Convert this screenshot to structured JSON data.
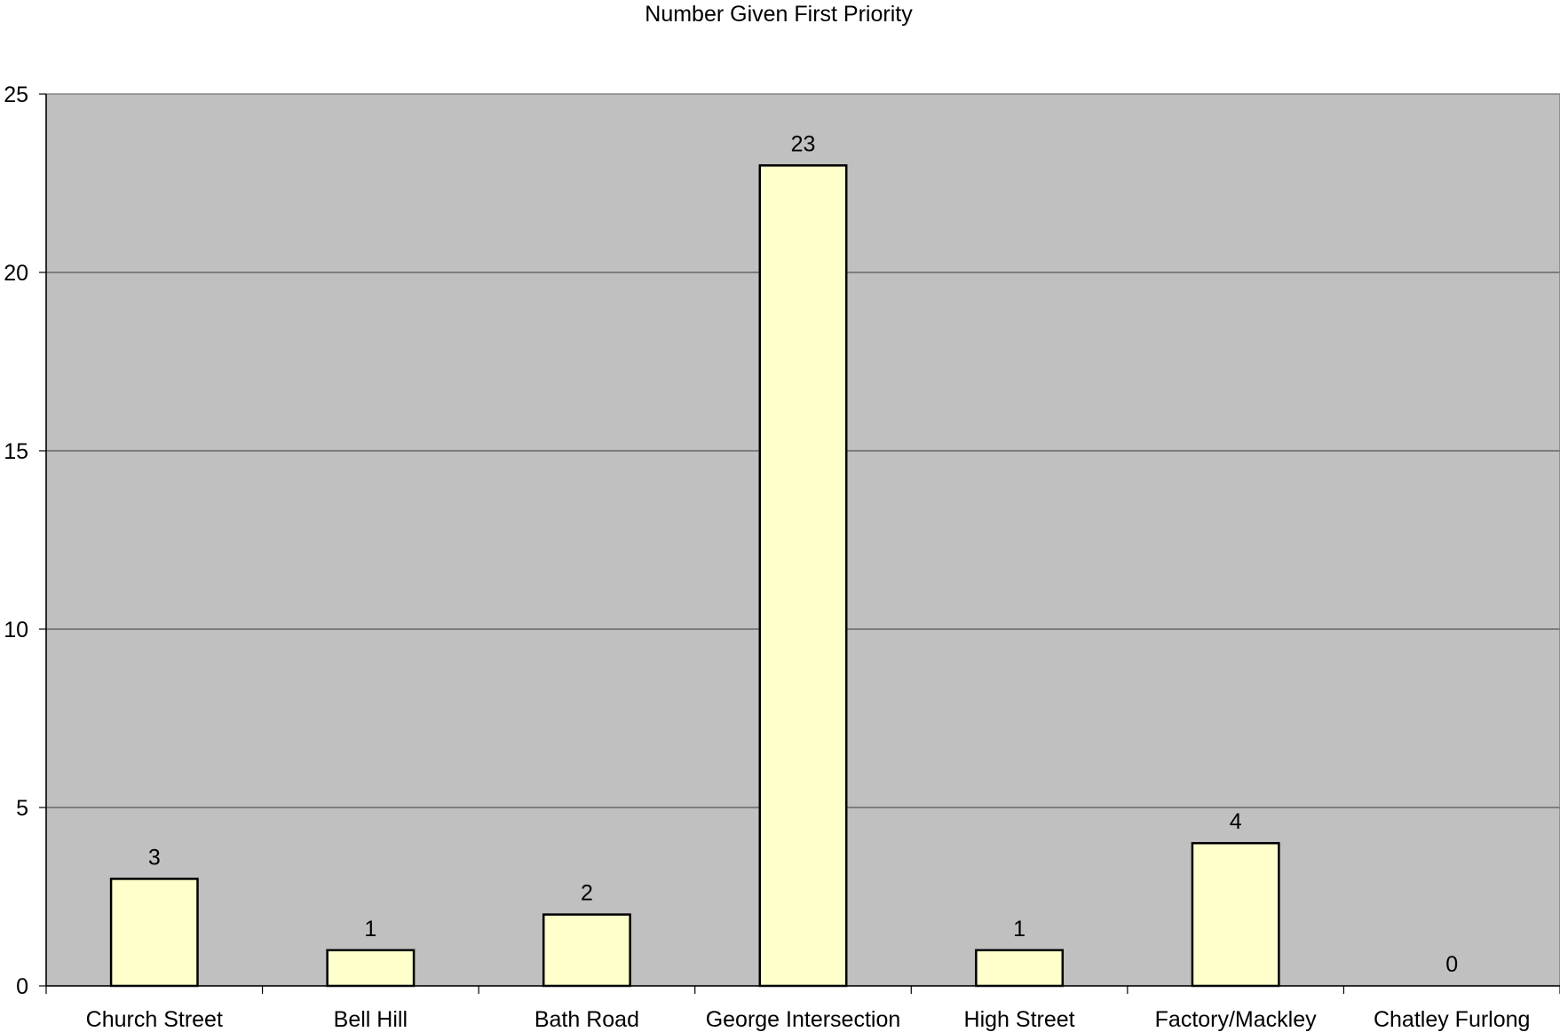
{
  "chart_data": {
    "type": "bar",
    "title": "Number Given First Priority",
    "xlabel": "",
    "ylabel": "",
    "categories": [
      "Church Street",
      "Bell Hill",
      "Bath Road",
      "George Intersection",
      "High Street",
      "Factory/Mackley",
      "Chatley Furlong"
    ],
    "values": [
      3,
      1,
      2,
      23,
      1,
      4,
      0
    ],
    "data_labels": [
      "3",
      "1",
      "2",
      "23",
      "1",
      "4",
      "0"
    ],
    "ylim": [
      0,
      25
    ],
    "yticks": [
      0,
      5,
      10,
      15,
      20,
      25
    ],
    "ytick_labels": [
      "0",
      "5",
      "10",
      "15",
      "20",
      "25"
    ],
    "grid": true,
    "legend": "none",
    "colors": {
      "plot_background": "#c0c0c0",
      "bar_fill": "#ffffcc",
      "bar_stroke": "#000000",
      "gridline": "#3a3a3a"
    }
  }
}
